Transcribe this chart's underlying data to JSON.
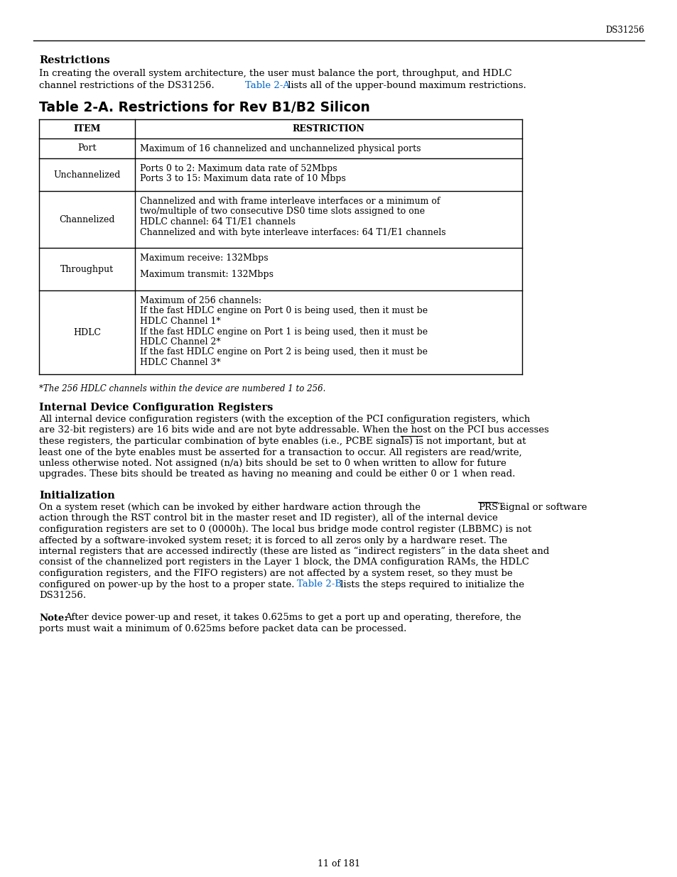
{
  "page_header_right": "DS31256",
  "restrictions_heading": "Restrictions",
  "restrictions_line1": "In creating the overall system architecture, the user must balance the port, throughput, and HDLC",
  "restrictions_line2_pre": "channel restrictions of the DS31256. ",
  "restrictions_line2_link": "Table 2-A",
  "restrictions_line2_post": " lists all of the upper-bound maximum restrictions.",
  "table_title": "Table 2-A. Restrictions for Rev B1/B2 Silicon",
  "table_col1_header": "ITEM",
  "table_col2_header": "RESTRICTION",
  "table_footnote": "*The 256 HDLC channels within the device are numbered 1 to 256.",
  "internal_heading": "Internal Device Configuration Registers",
  "init_heading": "Initialization",
  "page_number": "11 of 181",
  "bg": "#ffffff",
  "fg": "#000000",
  "link_color": "#0066cc"
}
